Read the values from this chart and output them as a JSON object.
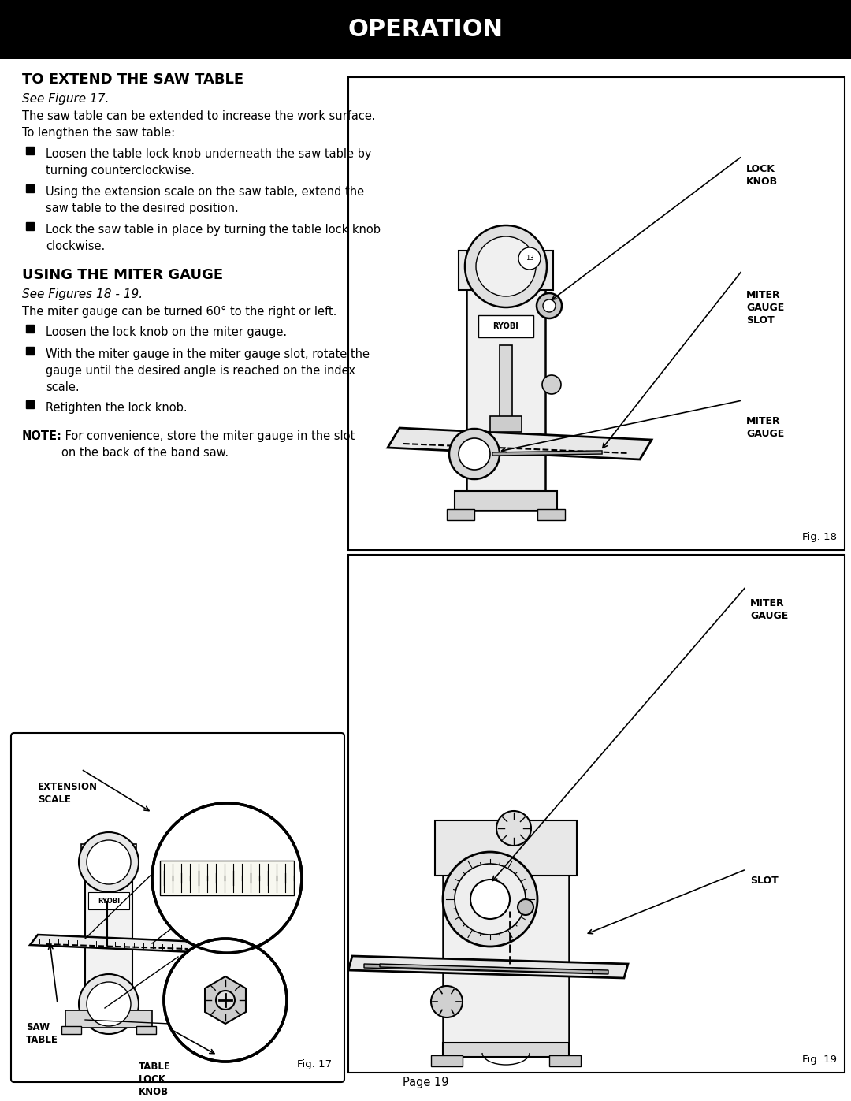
{
  "page_title": "OPERATION",
  "page_number": "Page 19",
  "section1_title": "TO EXTEND THE SAW TABLE",
  "section1_subtitle": "See Figure 17.",
  "section1_body": "The saw table can be extended to increase the work surface.\nTo lengthen the saw table:",
  "section1_bullets": [
    "Loosen the table lock knob underneath the saw table by\nturning counterclockwise.",
    "Using the extension scale on the saw table, extend the\nsaw table to the desired position.",
    "Lock the saw table in place by turning the table lock knob\nclockwise."
  ],
  "section2_title": "USING THE MITER GAUGE",
  "section2_subtitle": "See Figures 18 - 19.",
  "section2_body": "The miter gauge can be turned 60° to the right or left.",
  "section2_bullets": [
    "Loosen the lock knob on the miter gauge.",
    "With the miter gauge in the miter gauge slot, rotate the\ngauge until the desired angle is reached on the index\nscale.",
    "Retighten the lock knob."
  ],
  "note_bold": "NOTE:",
  "note_rest": " For convenience, store the miter gauge in the slot\non the back of the band saw.",
  "fig17_caption": "Fig. 17",
  "fig18_caption": "Fig. 18",
  "fig19_caption": "Fig. 19",
  "bg_color": "#ffffff",
  "header_bg": "#000000",
  "header_text_color": "#ffffff",
  "text_color": "#000000",
  "border_color": "#000000"
}
